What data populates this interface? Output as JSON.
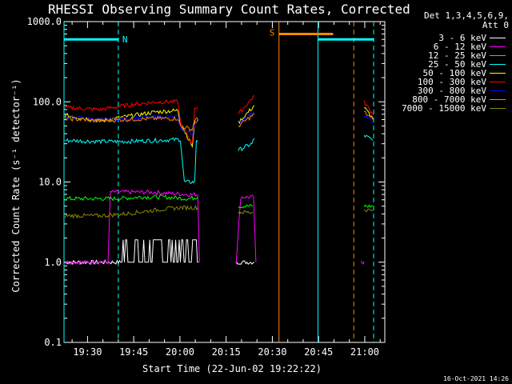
{
  "chart_data": {
    "type": "line",
    "title": "RHESSI Observing Summary Count Rates, Corrected",
    "legend_header": [
      "Det 1,3,4,5,6,9,",
      "Att 0"
    ],
    "xlabel": "Start Time (22-Jun-02 19:22:22)",
    "ylabel": "Corrected Count Rate (s⁻¹ detector⁻¹)",
    "yscale": "log",
    "ylim": [
      0.1,
      1000
    ],
    "y_ticks": [
      {
        "v": 0.1,
        "label": "0.1"
      },
      {
        "v": 1,
        "label": "1.0"
      },
      {
        "v": 10,
        "label": "10.0"
      },
      {
        "v": 100,
        "label": "100.0"
      },
      {
        "v": 1000,
        "label": "1000.0"
      }
    ],
    "xlim_minutes_after_1920": [
      2.37,
      42.7
    ],
    "x_ticks": [
      {
        "t": 10,
        "label": "19:30"
      },
      {
        "t": 25,
        "label": "19:45"
      },
      {
        "t": 40,
        "label": "20:00"
      },
      {
        "t": 55,
        "label": "20:15"
      },
      {
        "t": 70,
        "label": "20:30"
      },
      {
        "t": 85,
        "label": "20:45"
      },
      {
        "t": 100,
        "label": "21:00"
      }
    ],
    "grid": false,
    "legend_position": "right",
    "timestamp": "16-Oct-2021 14:26",
    "annotations": [
      {
        "label": "N",
        "color": "#00ffff",
        "x_start": 2.37,
        "x_end": 9.2,
        "y": 600,
        "type": "night"
      },
      {
        "label": "S",
        "color": "#ff8800",
        "x_start": 29.4,
        "x_end": 36.2,
        "y": 700,
        "type": "saa"
      },
      {
        "color": "#00ffff",
        "x_start": 34.3,
        "x_end": 41.3,
        "y": 600,
        "type": "night"
      }
    ],
    "vlines": [
      {
        "x": 2.37,
        "color": "#00ffff",
        "style": "solid"
      },
      {
        "x": 9.2,
        "color": "#00ffff",
        "style": "dashed"
      },
      {
        "x": 29.4,
        "color": "#ff8800",
        "style": "solid"
      },
      {
        "x": 34.3,
        "color": "#00ffff",
        "style": "solid"
      },
      {
        "x": 38.8,
        "color": "#ff8800",
        "style": "dashed"
      },
      {
        "x": 41.3,
        "color": "#00ffff",
        "style": "dashed"
      }
    ],
    "series": [
      {
        "name": "3 - 6 keV",
        "color": "#ffffff",
        "segments": [
          [
            [
              2.5,
              1.0
            ],
            [
              9.5,
              1.0
            ],
            [
              9.8,
              1.5
            ],
            [
              13,
              1.5
            ],
            [
              17,
              1.5
            ],
            [
              19,
              1.5
            ],
            [
              19.3,
              1.0
            ]
          ],
          [
            [
              24,
              1.0
            ],
            [
              26.3,
              1.0
            ]
          ],
          [
            [
              40,
              1.0
            ]
          ]
        ]
      },
      {
        "name": "6 - 12 keV",
        "color": "#ff00ff",
        "segments": [
          [
            [
              2.5,
              1.0
            ],
            [
              7.9,
              1.0
            ],
            [
              8.2,
              7.5
            ],
            [
              13,
              7.5
            ],
            [
              18,
              7.0
            ],
            [
              19.2,
              7.0
            ],
            [
              19.4,
              1.0
            ]
          ],
          [
            [
              24,
              1.0
            ],
            [
              24.6,
              6.5
            ],
            [
              26.2,
              6.5
            ],
            [
              26.5,
              1.0
            ]
          ],
          [
            [
              39.7,
              1.0
            ],
            [
              40.1,
              1.0
            ]
          ]
        ]
      },
      {
        "name": "12 - 25 keV",
        "color": "#00ff00",
        "segments": [
          [
            [
              2.5,
              6.2
            ],
            [
              9,
              6.2
            ],
            [
              12,
              6.5
            ],
            [
              15,
              6.5
            ],
            [
              18,
              6.2
            ],
            [
              19.2,
              6.5
            ]
          ],
          [
            [
              24.3,
              5.0
            ],
            [
              26.1,
              5.0
            ]
          ],
          [
            [
              40.1,
              5.0
            ],
            [
              41.2,
              5.0
            ]
          ]
        ]
      },
      {
        "name": "25 - 50 keV",
        "color": "#00ffff",
        "segments": [
          [
            [
              2.5,
              33
            ],
            [
              7,
              32
            ],
            [
              10,
              32
            ],
            [
              14,
              33
            ],
            [
              17,
              34
            ],
            [
              17.5,
              10
            ],
            [
              18.8,
              10
            ],
            [
              19,
              33
            ],
            [
              19.2,
              33
            ]
          ],
          [
            [
              24.3,
              25
            ],
            [
              25,
              27
            ],
            [
              26,
              30
            ],
            [
              26.3,
              35
            ]
          ],
          [
            [
              40.1,
              38
            ],
            [
              40.8,
              35
            ],
            [
              41.2,
              33
            ]
          ]
        ]
      },
      {
        "name": "50 - 100 keV",
        "color": "#ffff00",
        "segments": [
          [
            [
              2.5,
              68
            ],
            [
              7,
              58
            ],
            [
              10,
              65
            ],
            [
              14,
              75
            ],
            [
              16.7,
              78
            ],
            [
              17,
              55
            ],
            [
              18.5,
              28
            ],
            [
              18.8,
              55
            ],
            [
              19.2,
              60
            ]
          ],
          [
            [
              24.3,
              55
            ],
            [
              26.3,
              90
            ]
          ],
          [
            [
              40.1,
              85
            ],
            [
              41.2,
              62
            ]
          ]
        ]
      },
      {
        "name": "100 - 300 keV",
        "color": "#ff0000",
        "segments": [
          [
            [
              2.5,
              85
            ],
            [
              7,
              80
            ],
            [
              10,
              90
            ],
            [
              14,
              100
            ],
            [
              16.7,
              100
            ],
            [
              17,
              55
            ],
            [
              18.5,
              30
            ],
            [
              18.8,
              85
            ],
            [
              19.2,
              85
            ]
          ],
          [
            [
              24.3,
              70
            ],
            [
              26.3,
              120
            ]
          ],
          [
            [
              40.1,
              100
            ],
            [
              41.2,
              70
            ]
          ]
        ]
      },
      {
        "name": "300 - 800 keV",
        "color": "#0000ff",
        "segments": [
          [
            [
              2.5,
              65
            ],
            [
              7,
              60
            ],
            [
              10,
              62
            ],
            [
              14,
              65
            ],
            [
              16.7,
              65
            ],
            [
              17,
              45
            ],
            [
              18.5,
              40
            ],
            [
              18.8,
              55
            ],
            [
              19.2,
              55
            ]
          ],
          [
            [
              24.3,
              55
            ],
            [
              26.3,
              75
            ]
          ],
          [
            [
              40.1,
              70
            ],
            [
              41.2,
              55
            ]
          ]
        ]
      },
      {
        "name": "800 - 7000 keV",
        "color": "#ff8800",
        "segments": [
          [
            [
              2.5,
              62
            ],
            [
              7,
              58
            ],
            [
              10,
              60
            ],
            [
              14,
              62
            ],
            [
              16.7,
              62
            ],
            [
              17,
              50
            ],
            [
              18.5,
              45
            ],
            [
              18.8,
              60
            ],
            [
              19.2,
              60
            ]
          ],
          [
            [
              24.3,
              50
            ],
            [
              26.3,
              70
            ]
          ],
          [
            [
              40.1,
              75
            ],
            [
              41.2,
              60
            ]
          ]
        ]
      },
      {
        "name": "7000 - 15000 keV",
        "color": "#888800",
        "segments": [
          [
            [
              2.5,
              3.8
            ],
            [
              7,
              3.8
            ],
            [
              10,
              4.0
            ],
            [
              14,
              4.5
            ],
            [
              17,
              4.8
            ],
            [
              19.2,
              4.8
            ]
          ],
          [
            [
              24.3,
              4.2
            ],
            [
              26.1,
              4.2
            ]
          ],
          [
            [
              40.1,
              4.5
            ],
            [
              41.2,
              4.5
            ]
          ]
        ]
      }
    ]
  }
}
